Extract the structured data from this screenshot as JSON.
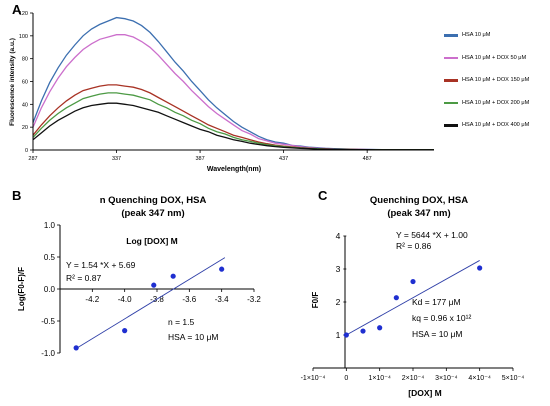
{
  "panels": {
    "a_letter": "A",
    "b_letter": "B",
    "c_letter": "C"
  },
  "chart_data": [
    {
      "type": "line",
      "panel": "A",
      "xlabel": "Wavelength(nm)",
      "ylabel": "Fluorescence intensity (a.u.)",
      "xlim": [
        287,
        527
      ],
      "ylim": [
        0,
        120
      ],
      "xticks": [
        "287",
        "337",
        "387",
        "437",
        "487"
      ],
      "yticks": [
        "0",
        "20",
        "40",
        "60",
        "80",
        "100",
        "120"
      ],
      "grid": false,
      "legend_position": "right",
      "x": [
        287,
        292,
        297,
        302,
        307,
        312,
        317,
        322,
        327,
        332,
        337,
        342,
        347,
        352,
        357,
        362,
        367,
        372,
        377,
        382,
        387,
        392,
        397,
        402,
        407,
        412,
        417,
        422,
        427,
        432,
        437,
        442,
        447,
        452,
        457,
        462,
        467,
        472,
        477,
        482,
        487,
        492,
        497,
        502,
        507,
        512,
        517,
        522,
        527
      ],
      "series": [
        {
          "name": "HSA 10 μM",
          "color": "#3c6fb0",
          "values": [
            24,
            43,
            59,
            72,
            83,
            92,
            100,
            106,
            110,
            113,
            116,
            115,
            113,
            109,
            103,
            95,
            86,
            77,
            69,
            60,
            52,
            44,
            37,
            31,
            25,
            20,
            16,
            12,
            9,
            7,
            6,
            4,
            3.5,
            2.5,
            2,
            1.5,
            1.2,
            1,
            0.8,
            0.6,
            0.5,
            0.4,
            0.3,
            0.3,
            0.2,
            0.2,
            0.2,
            0.2,
            0.2
          ]
        },
        {
          "name": "HSA 10 μM + DOX 50 μM",
          "color": "#cc6fcc",
          "values": [
            20,
            37,
            51,
            63,
            73,
            81,
            88,
            93,
            97,
            99,
            101,
            101,
            99,
            95,
            90,
            83,
            75,
            67,
            60,
            52,
            45,
            38,
            32,
            27,
            22,
            17,
            14,
            10,
            8,
            6,
            5,
            4,
            3,
            2.2,
            1.7,
            1.3,
            1,
            0.8,
            0.6,
            0.5,
            0.4,
            0.3,
            0.3,
            0.2,
            0.2,
            0.2,
            0.2,
            0.2,
            0.2
          ]
        },
        {
          "name": "HSA 10 μM + DOX 150 μM",
          "color": "#a83224",
          "values": [
            13,
            22,
            30,
            37,
            43,
            48,
            52,
            54,
            56,
            57,
            57,
            56,
            55,
            53,
            50,
            46,
            42,
            38,
            34,
            30,
            26,
            22,
            19,
            16,
            13,
            11,
            9,
            7,
            5.5,
            4.3,
            3.4,
            2.7,
            2,
            1.6,
            1.2,
            1,
            0.8,
            0.6,
            0.5,
            0.4,
            0.3,
            0.3,
            0.2,
            0.2,
            0.2,
            0.2,
            0.2,
            0.2,
            0.2
          ]
        },
        {
          "name": "HSA 10 μM + DOX 200 μM",
          "color": "#4c9a44",
          "values": [
            11,
            19,
            26,
            32,
            37,
            41,
            45,
            47,
            49,
            50,
            50,
            49,
            48,
            46,
            44,
            40,
            37,
            33,
            30,
            26,
            23,
            19,
            16,
            14,
            11,
            9,
            7.5,
            6,
            4.7,
            3.7,
            2.9,
            2.3,
            1.8,
            1.4,
            1.1,
            0.9,
            0.7,
            0.5,
            0.4,
            0.3,
            0.3,
            0.2,
            0.2,
            0.2,
            0.2,
            0.2,
            0.2,
            0.2,
            0.2
          ]
        },
        {
          "name": "HSA 10 μM + DOX 400 μM",
          "color": "#111111",
          "values": [
            9,
            15,
            21,
            26,
            30,
            34,
            37,
            39,
            40,
            41,
            41,
            40,
            39,
            37,
            35,
            33,
            30,
            27,
            24,
            21,
            18,
            16,
            13,
            11,
            9,
            7.5,
            6,
            4.8,
            3.8,
            3,
            2.4,
            1.9,
            1.5,
            1.2,
            0.9,
            0.7,
            0.6,
            0.5,
            0.4,
            0.3,
            0.3,
            0.2,
            0.2,
            0.2,
            0.2,
            0.2,
            0.2,
            0.2,
            0.2
          ]
        }
      ]
    },
    {
      "type": "scatter",
      "panel": "B",
      "title": "n Quenching DOX, HSA",
      "subtitle": "(peak 347 nm)",
      "xlabel": "Log [DOX] M",
      "ylabel": "Log(F0-F)/F",
      "xlim": [
        -4.4,
        -3.2
      ],
      "ylim": [
        -1.0,
        1.0
      ],
      "xticks": [
        "-4.2",
        "-4.0",
        "-3.8",
        "-3.6",
        "-3.4",
        "-3.2"
      ],
      "yticks": [
        "1.0",
        "0.5",
        "0.0",
        "-0.5",
        "-1.0"
      ],
      "points": {
        "x": [
          -4.3,
          -4.0,
          -3.82,
          -3.7,
          -3.4
        ],
        "y": [
          -0.92,
          -0.65,
          0.06,
          0.2,
          0.31
        ]
      },
      "fit_line": {
        "x": [
          -4.3,
          -3.38
        ],
        "y": [
          -0.93,
          0.49
        ]
      },
      "equation": "Y = 1.54 *X + 5.69",
      "r2": "R² = 0.87",
      "annotation_n": "n = 1.5",
      "annotation_hsa": "HSA = 10 μM",
      "point_color": "#1f2fd0",
      "line_color": "#3040a8"
    },
    {
      "type": "scatter",
      "panel": "C",
      "title": "Quenching DOX, HSA",
      "subtitle": "(peak 347 nm)",
      "xlabel": "[DOX] M",
      "ylabel": "F0/F",
      "xlim": [
        -0.0001,
        0.0005
      ],
      "ylim": [
        0,
        4
      ],
      "xticks": [
        "-1×10⁻⁴",
        "0",
        "1×10⁻⁴",
        "2×10⁻⁴",
        "3×10⁻⁴",
        "4×10⁻⁴",
        "5×10⁻⁴"
      ],
      "yticks": [
        "4",
        "3",
        "2",
        "1"
      ],
      "points": {
        "x": [
          0,
          5e-05,
          0.0001,
          0.00015,
          0.0002,
          0.0004
        ],
        "y": [
          1.0,
          1.12,
          1.22,
          2.13,
          2.62,
          3.03
        ]
      },
      "fit_line": {
        "x": [
          0,
          0.0004
        ],
        "y": [
          1.0,
          3.26
        ]
      },
      "equation": "Y = 5644 *X + 1.00",
      "r2": "R² = 0.86",
      "annotation_kd": "Kd = 177 μM",
      "annotation_kq": "kq = 0.96 x 10¹²",
      "annotation_hsa": "HSA = 10 μM",
      "point_color": "#1f2fd0",
      "line_color": "#3040a8"
    }
  ]
}
